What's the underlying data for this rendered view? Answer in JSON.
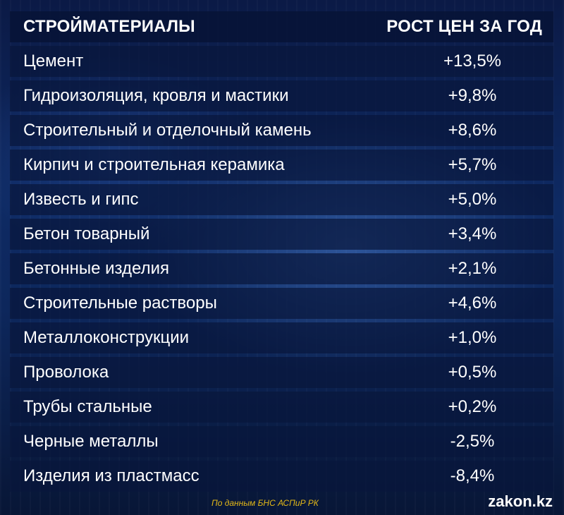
{
  "header": {
    "col_name": "СТРОЙМАТЕРИАЛЫ",
    "col_value": "РОСТ ЦЕН ЗА ГОД"
  },
  "rows": [
    {
      "name": "Цемент",
      "value": "+13,5%"
    },
    {
      "name": "Гидроизоляция, кровля и мастики",
      "value": "+9,8%"
    },
    {
      "name": "Строительный и отделочный камень",
      "value": "+8,6%"
    },
    {
      "name": "Кирпич и строительная керамика",
      "value": "+5,7%"
    },
    {
      "name": "Известь и гипс",
      "value": "+5,0%"
    },
    {
      "name": "Бетон товарный",
      "value": "+3,4%"
    },
    {
      "name": "Бетонные изделия",
      "value": "+2,1%"
    },
    {
      "name": "Строительные растворы",
      "value": "+4,6%"
    },
    {
      "name": "Металлоконструкции",
      "value": "+1,0%"
    },
    {
      "name": "Проволока",
      "value": "+0,5%"
    },
    {
      "name": "Трубы стальные",
      "value": "+0,2%"
    },
    {
      "name": "Черные металлы",
      "value": "-2,5%"
    },
    {
      "name": "Изделия из пластмасс",
      "value": "-8,4%"
    }
  ],
  "footer": {
    "source": "По данным БНС АСПиР РК",
    "logo": "zakon.kz"
  },
  "colors": {
    "source_text": "#e3b818",
    "row_background": "#08163c"
  }
}
